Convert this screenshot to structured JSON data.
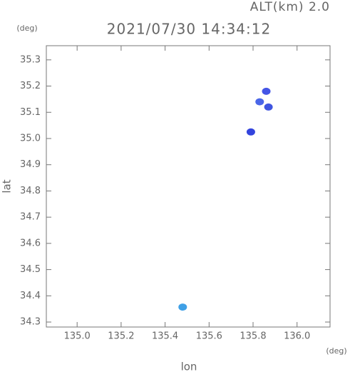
{
  "chart_data": {
    "type": "scatter",
    "title": "2021/07/30 14:34:12",
    "subtitle": "ALT(km) 2.0",
    "x_label": "lon",
    "y_label": "lat",
    "x_unit": "(deg)",
    "y_unit": "(deg)",
    "x": [
      135.86,
      135.83,
      135.87,
      135.79,
      135.48
    ],
    "y": [
      35.18,
      35.14,
      35.12,
      35.025,
      34.357
    ],
    "colors": [
      "#4455e6",
      "#4a66e8",
      "#3f55e0",
      "#3344dd",
      "#3fa0e6"
    ],
    "xlim": [
      134.86,
      136.15
    ],
    "ylim": [
      34.281,
      35.354
    ],
    "xticks": [
      {
        "value": 135.0,
        "label": "135.0"
      },
      135.2,
      135.4,
      135.6,
      135.8,
      {
        "value": 136.0,
        "label": "136.0"
      }
    ],
    "yticks": [
      34.3,
      34.4,
      34.5,
      34.6,
      34.7,
      34.8,
      34.9,
      {
        "value": 35.0,
        "label": "35.0"
      },
      35.1,
      35.2,
      35.3
    ]
  }
}
